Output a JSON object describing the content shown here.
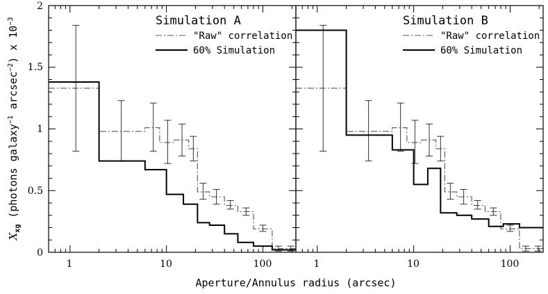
{
  "chart_data": {
    "type": "line",
    "xlabel": "Aperture/Annulus radius (arcsec)",
    "ylabel_parts": {
      "main": "X",
      "sub": "xg",
      "text1": " (photons galaxy",
      "sup1": "−1",
      "text2": " arcsec",
      "sup2": "−2",
      "text3": ") x 10",
      "sup3": "−3"
    },
    "x_scale": "log",
    "xlim": [
      0.6,
      220
    ],
    "ylim": [
      0,
      2
    ],
    "x_tick_labels": [
      "1",
      "10",
      "100"
    ],
    "y_tick_labels": [
      "0",
      "0.5",
      "1",
      "1.5",
      "2"
    ],
    "legend": {
      "raw_label": "\"Raw\" correlation",
      "sim_label": "60% Simulation"
    },
    "raw_correlation": {
      "edges": [
        0.6,
        2,
        6,
        8.5,
        12,
        17,
        21,
        28,
        40,
        55,
        80,
        125,
        170,
        220
      ],
      "values": [
        1.33,
        0.98,
        1.01,
        0.89,
        0.91,
        0.84,
        0.49,
        0.45,
        0.38,
        0.33,
        0.19,
        0.03,
        0.03
      ],
      "error_x": [
        1.15,
        3.4,
        7.3,
        10.3,
        14.5,
        19,
        24,
        33,
        46,
        67,
        100,
        145,
        195
      ],
      "error_low": [
        0.82,
        0.74,
        0.82,
        0.72,
        0.78,
        0.74,
        0.43,
        0.39,
        0.35,
        0.3,
        0.17,
        0.01,
        0.01
      ],
      "error_high": [
        1.84,
        1.23,
        1.21,
        1.07,
        1.04,
        0.94,
        0.56,
        0.51,
        0.42,
        0.36,
        0.22,
        0.05,
        0.05
      ]
    },
    "panels": [
      {
        "title": "Simulation A",
        "simulation": {
          "edges": [
            0.6,
            2,
            6,
            10,
            15,
            21,
            28,
            40,
            55,
            80,
            125,
            220
          ],
          "values": [
            1.38,
            0.74,
            0.67,
            0.47,
            0.39,
            0.24,
            0.22,
            0.15,
            0.08,
            0.05,
            0.02
          ]
        }
      },
      {
        "title": "Simulation B",
        "simulation": {
          "edges": [
            0.6,
            2,
            6,
            10,
            14,
            19,
            28,
            40,
            60,
            85,
            125,
            220
          ],
          "values": [
            1.8,
            0.95,
            0.83,
            0.55,
            0.68,
            0.32,
            0.3,
            0.27,
            0.21,
            0.23,
            0.2
          ]
        }
      }
    ]
  }
}
